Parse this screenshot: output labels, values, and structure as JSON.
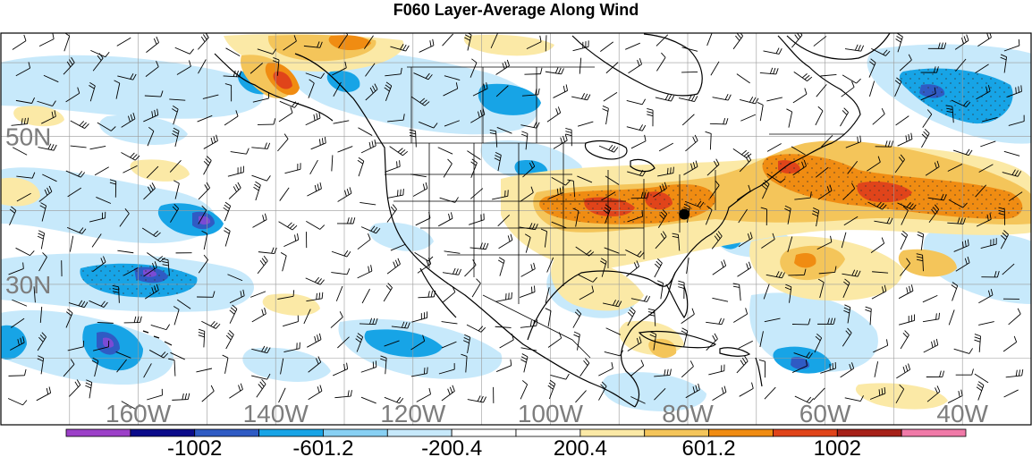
{
  "title": "F060 Layer-Average Along Wind",
  "map": {
    "lat_labels": [
      {
        "text": "50N",
        "lat": 50
      },
      {
        "text": "30N",
        "lat": 30
      }
    ],
    "lon_labels": [
      {
        "text": "160W",
        "lon": -160
      },
      {
        "text": "140W",
        "lon": -140
      },
      {
        "text": "120W",
        "lon": -120
      },
      {
        "text": "100W",
        "lon": -100
      },
      {
        "text": "80W",
        "lon": -80
      },
      {
        "text": "60W",
        "lon": -60
      },
      {
        "text": "40W",
        "lon": -40
      }
    ],
    "lon_range": [
      -180,
      -30
    ],
    "lat_range": [
      11,
      64
    ],
    "grid_lines": true,
    "marker": {
      "name": "black-dot-marker",
      "lon": -80.5,
      "lat": 39.5
    }
  },
  "colorbar": {
    "colors": [
      "#9c40c8",
      "#0b0b8a",
      "#2f5bc4",
      "#17a4e6",
      "#88d0f3",
      "#c7e9fb",
      "#ffffff",
      "#ffffff",
      "#fbe9a6",
      "#f4c55a",
      "#f08c12",
      "#e0441a",
      "#a62018",
      "#f07aa8"
    ],
    "labels": [
      "-1002",
      "-601.2",
      "-200.4",
      "200.4",
      "601.2",
      "1002"
    ],
    "label_boundary_index": [
      2,
      4,
      6,
      8,
      10,
      12
    ]
  }
}
